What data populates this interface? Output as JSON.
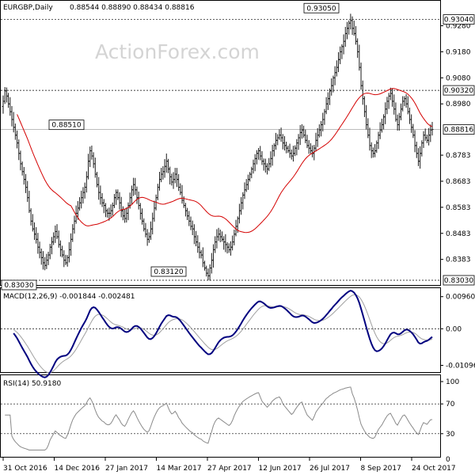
{
  "chart_data": {
    "type": "ohlc",
    "title": "EURGBP,Daily",
    "ohlc_text": "0.88544 0.88890 0.88434 0.88816",
    "watermark": "ActionForex.com",
    "price_range": [
      0.8303,
      0.9324
    ],
    "price_ticks": [
      0.928,
      0.918,
      0.908,
      0.898,
      0.8783,
      0.8683,
      0.8583,
      0.8483,
      0.8383
    ],
    "price_tags": {
      "high_box": "0.93040",
      "level_box": "0.90320",
      "current_box": "0.88816",
      "low_box": "0.83030"
    },
    "price_levels": {
      "high": 0.9304,
      "level": 0.9032,
      "current": 0.88816,
      "low": 0.8303
    },
    "annotations": [
      {
        "text": "0.93050",
        "value": 0.9305
      },
      {
        "text": "0.88510",
        "value": 0.8851
      },
      {
        "text": "0.83030",
        "value": 0.8303
      },
      {
        "text": "0.83120",
        "value": 0.8312
      }
    ],
    "x_labels": [
      "31 Oct 2016",
      "14 Dec 2016",
      "27 Jan 2017",
      "14 Mar 2017",
      "27 Apr 2017",
      "12 Jun 2017",
      "26 Jul 2017",
      "8 Sep 2017",
      "24 Oct 2017"
    ],
    "closes": [
      0.899,
      0.903,
      0.901,
      0.898,
      0.895,
      0.892,
      0.889,
      0.886,
      0.883,
      0.879,
      0.875,
      0.872,
      0.869,
      0.866,
      0.862,
      0.857,
      0.853,
      0.85,
      0.848,
      0.846,
      0.843,
      0.841,
      0.839,
      0.837,
      0.836,
      0.838,
      0.84,
      0.843,
      0.845,
      0.847,
      0.849,
      0.847,
      0.844,
      0.842,
      0.84,
      0.838,
      0.837,
      0.839,
      0.842,
      0.846,
      0.85,
      0.853,
      0.856,
      0.858,
      0.86,
      0.862,
      0.864,
      0.866,
      0.87,
      0.876,
      0.88,
      0.878,
      0.875,
      0.871,
      0.867,
      0.864,
      0.862,
      0.86,
      0.859,
      0.857,
      0.856,
      0.856,
      0.857,
      0.859,
      0.862,
      0.864,
      0.862,
      0.86,
      0.857,
      0.855,
      0.854,
      0.856,
      0.859,
      0.862,
      0.865,
      0.867,
      0.865,
      0.862,
      0.859,
      0.856,
      0.853,
      0.85,
      0.848,
      0.846,
      0.847,
      0.85,
      0.854,
      0.858,
      0.862,
      0.866,
      0.869,
      0.871,
      0.872,
      0.874,
      0.876,
      0.873,
      0.87,
      0.868,
      0.869,
      0.871,
      0.869,
      0.866,
      0.864,
      0.861,
      0.859,
      0.857,
      0.855,
      0.853,
      0.851,
      0.85,
      0.847,
      0.845,
      0.843,
      0.841,
      0.84,
      0.837,
      0.835,
      0.833,
      0.832,
      0.835,
      0.838,
      0.842,
      0.845,
      0.847,
      0.848,
      0.847,
      0.846,
      0.845,
      0.844,
      0.843,
      0.842,
      0.843,
      0.845,
      0.848,
      0.851,
      0.854,
      0.857,
      0.86,
      0.863,
      0.865,
      0.867,
      0.869,
      0.871,
      0.873,
      0.875,
      0.877,
      0.879,
      0.88,
      0.878,
      0.876,
      0.875,
      0.874,
      0.873,
      0.875,
      0.877,
      0.88,
      0.882,
      0.884,
      0.885,
      0.886,
      0.885,
      0.883,
      0.882,
      0.881,
      0.88,
      0.879,
      0.878,
      0.879,
      0.881,
      0.883,
      0.885,
      0.887,
      0.888,
      0.886,
      0.884,
      0.882,
      0.881,
      0.88,
      0.879,
      0.881,
      0.884,
      0.886,
      0.888,
      0.89,
      0.892,
      0.895,
      0.898,
      0.9,
      0.903,
      0.905,
      0.908,
      0.91,
      0.912,
      0.915,
      0.918,
      0.92,
      0.922,
      0.925,
      0.927,
      0.929,
      0.93,
      0.927,
      0.925,
      0.922,
      0.918,
      0.912,
      0.905,
      0.9,
      0.895,
      0.89,
      0.886,
      0.882,
      0.88,
      0.879,
      0.88,
      0.883,
      0.886,
      0.888,
      0.89,
      0.893,
      0.896,
      0.899,
      0.901,
      0.902,
      0.899,
      0.896,
      0.892,
      0.89,
      0.893,
      0.896,
      0.899,
      0.9,
      0.898,
      0.895,
      0.892,
      0.889,
      0.886,
      0.882,
      0.879,
      0.876,
      0.879,
      0.883,
      0.886,
      0.885,
      0.884,
      0.886,
      0.888,
      0.8882
    ],
    "sma_label": "",
    "macd": {
      "label": "MACD(12,26,9) -0.001844 -0.002481",
      "ticks": [
        0.009608,
        0.0,
        -0.010961
      ],
      "tick_labels": [
        "0.009608",
        "0.00",
        "-0.010961"
      ],
      "range": [
        -0.0125,
        0.0112
      ]
    },
    "rsi": {
      "label": "RSI(14) 50.9180",
      "ticks": [
        100,
        70,
        30,
        0
      ],
      "tick_labels": [
        "100",
        "70",
        "30",
        "0"
      ],
      "levels": [
        70,
        30
      ]
    },
    "colors": {
      "bars": "#1a1a1a",
      "sma": "#d40000",
      "macd_line": "#00007f",
      "macd_signal": "#a0a0a0",
      "rsi_line": "#8a8a8a",
      "grid": "#000000",
      "box_fill": "#ffffff"
    }
  }
}
